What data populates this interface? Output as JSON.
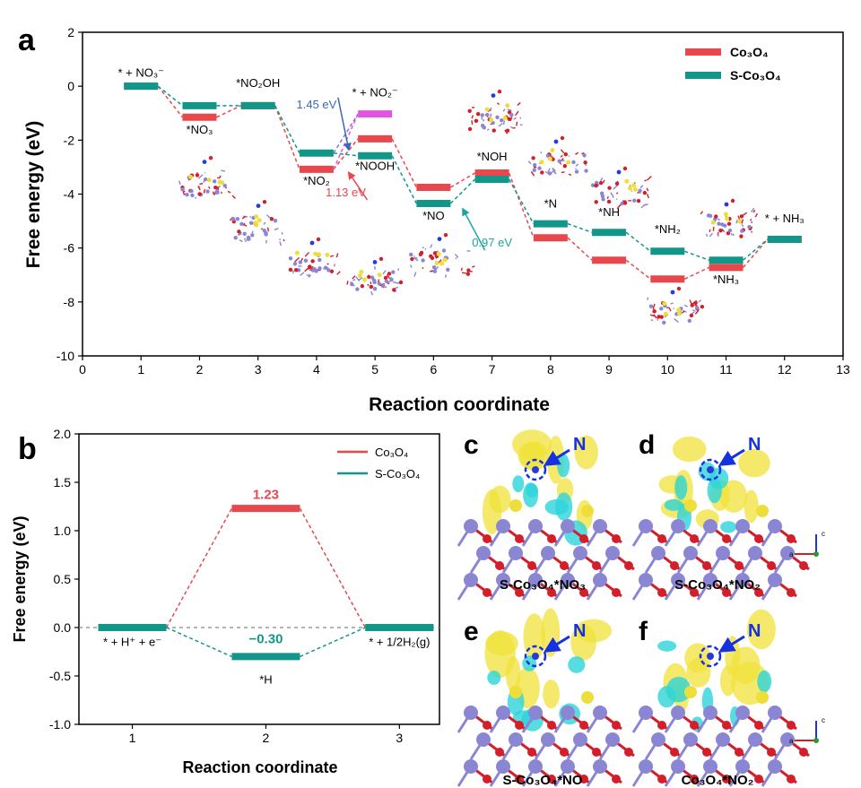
{
  "figure": {
    "panel_letters": [
      "a",
      "b",
      "c",
      "d",
      "e",
      "f"
    ],
    "element_label": "N",
    "axis_triad_labels": [
      "a",
      "c"
    ]
  },
  "colors": {
    "co3o4": "#e8474c",
    "s_co3o4": "#12968a",
    "alt_barrier": "#e154e1",
    "barrier_145": "#3a67b8",
    "annot_113": "#e8474c",
    "annot_097": "#1aa6a0",
    "ref_line": "#888888",
    "isosurface_yellow": "#f0e23a",
    "isosurface_cyan": "#2dd4d9",
    "atom_co": "#8a86d4",
    "atom_o": "#d21f2a",
    "atom_s": "#eede3a",
    "atom_n": "#2a3ad8",
    "marker_blue": "#1631e0"
  },
  "chart_data": [
    {
      "panel": "a",
      "type": "line",
      "subtype": "free-energy step diagram",
      "xlabel": "Reaction coordinate",
      "ylabel": "Free energy (eV)",
      "xlim": [
        0,
        13
      ],
      "ylim": [
        -10,
        2
      ],
      "xticks": [
        0,
        1,
        2,
        3,
        4,
        5,
        6,
        7,
        8,
        9,
        10,
        11,
        12,
        13
      ],
      "yticks": [
        2,
        0,
        -2,
        -4,
        -6,
        -8,
        -10
      ],
      "grid": false,
      "legend_position": "top-right",
      "series": [
        {
          "name": "Co₃O₄",
          "color_key": "co3o4",
          "x": [
            1,
            2,
            3,
            4,
            5,
            6,
            7,
            8,
            9,
            10,
            11,
            12
          ],
          "y": [
            0,
            -1.15,
            -0.72,
            -3.08,
            -1.95,
            -3.75,
            -3.22,
            -5.62,
            -6.45,
            -7.15,
            -6.72,
            -5.68
          ]
        },
        {
          "name": "S-Co₃O₄",
          "color_key": "s_co3o4",
          "x": [
            1,
            2,
            3,
            4,
            5,
            6,
            7,
            8,
            9,
            10,
            11,
            12
          ],
          "y": [
            0,
            -0.72,
            -0.72,
            -2.48,
            -2.58,
            -4.35,
            -3.45,
            -5.1,
            -5.42,
            -6.12,
            -6.45,
            -5.68
          ]
        }
      ],
      "extra_levels": [
        {
          "x": 5,
          "y": -1.03,
          "color_key": "alt_barrier"
        }
      ],
      "step_labels": [
        {
          "text": "* + NO₃⁻",
          "x": 1,
          "y": 0.35
        },
        {
          "text": "*NO₃",
          "x": 2,
          "y": -1.75
        },
        {
          "text": "*NO₂OH",
          "x": 3,
          "y": -0.02
        },
        {
          "text": "*NO₂",
          "x": 4,
          "y": -3.65
        },
        {
          "text": "* + NO₂⁻",
          "x": 5,
          "y": -0.38
        },
        {
          "text": "*NOOH",
          "x": 5,
          "y": -3.1
        },
        {
          "text": "*NO",
          "x": 6,
          "y": -4.95
        },
        {
          "text": "*NOH",
          "x": 7,
          "y": -2.75
        },
        {
          "text": "*N",
          "x": 8,
          "y": -4.5
        },
        {
          "text": "*NH",
          "x": 9,
          "y": -4.82
        },
        {
          "text": "*NH₂",
          "x": 10,
          "y": -5.45
        },
        {
          "text": "*NH₃",
          "x": 11,
          "y": -7.3
        },
        {
          "text": "* + NH₃",
          "x": 12,
          "y": -5.05
        }
      ],
      "annotations": [
        {
          "text": "1.45 eV",
          "color_key": "barrier_145",
          "x": 4.0,
          "y": -0.82,
          "arrow_to": [
            4.55,
            -2.35
          ]
        },
        {
          "text": "1.13 eV",
          "color_key": "annot_113",
          "x": 4.5,
          "y": -4.08,
          "arrow_to": [
            4.55,
            -3.2
          ]
        },
        {
          "text": "0.97 eV",
          "color_key": "annot_097",
          "x": 7.0,
          "y": -5.95,
          "arrow_to": [
            6.5,
            -4.55
          ]
        }
      ]
    },
    {
      "panel": "b",
      "type": "line",
      "subtype": "free-energy step diagram",
      "xlabel": "Reaction coordinate",
      "ylabel": "Free energy (eV)",
      "xlim": [
        0.6,
        3.3
      ],
      "ylim": [
        -1.0,
        2.0
      ],
      "xticks": [
        1,
        2,
        3
      ],
      "yticks": [
        2.0,
        1.5,
        1.0,
        0.5,
        0.0,
        -0.5,
        -1.0
      ],
      "grid": false,
      "legend_position": "top-right",
      "reference_line_y": 0.0,
      "series": [
        {
          "name": "Co₃O₄",
          "color_key": "co3o4",
          "x": [
            1,
            2,
            3
          ],
          "y": [
            0,
            1.23,
            0
          ]
        },
        {
          "name": "S-Co₃O₄",
          "color_key": "s_co3o4",
          "x": [
            1,
            2,
            3
          ],
          "y": [
            0,
            -0.3,
            0
          ]
        }
      ],
      "data_labels": [
        {
          "text": "1.23",
          "color_key": "co3o4",
          "x": 2,
          "y": 1.33
        },
        {
          "text": "−0.30",
          "color_key": "s_co3o4",
          "x": 2,
          "y": -0.16
        }
      ],
      "step_labels": [
        {
          "text": "* + H⁺ + e⁻",
          "x": 1,
          "y": -0.19
        },
        {
          "text": "*H",
          "x": 2,
          "y": -0.58
        },
        {
          "text": "* + 1/2H₂(g)",
          "x": 3,
          "y": -0.19
        }
      ]
    }
  ],
  "structure_panels": [
    {
      "panel": "c",
      "caption": "S-Co₃O₄*NO₃"
    },
    {
      "panel": "d",
      "caption": "S-Co₃O₄*NO₂"
    },
    {
      "panel": "e",
      "caption": "S-Co₃O₄*NO"
    },
    {
      "panel": "f",
      "caption": "Co₃O₄*NO₂"
    }
  ]
}
